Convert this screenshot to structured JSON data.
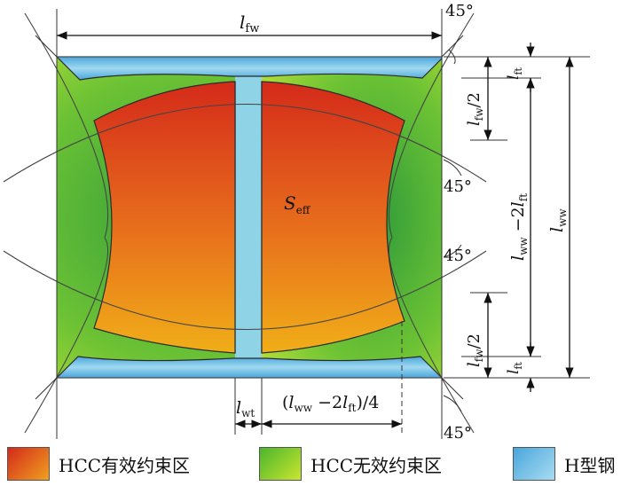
{
  "labels": {
    "top_width": "l",
    "top_width_sub": "fw",
    "half_flange_sub": "fw",
    "half_suffix": "/2",
    "flange_thk": "l",
    "flange_thk_sub": "ft",
    "web_height": "l",
    "web_height_sub": "ww",
    "web_height_minus": " −2",
    "web_height_l2": "l",
    "web_height_l2_sub": "ft",
    "total_height": "l",
    "total_height_sub": "ww",
    "web_thk": "l",
    "web_thk_sub": "wt",
    "quarter_prefix": "(",
    "quarter_l": "l",
    "quarter_l_sub": "ww",
    "quarter_mid": " −2",
    "quarter_l2": "l",
    "quarter_l2_sub": "ft",
    "quarter_suffix": ")/4",
    "seff": "S",
    "seff_sub": "eff",
    "angle": "45°"
  },
  "legend": [
    {
      "label": "HCC有效约束区",
      "color_a": "#d42a1a",
      "color_b": "#f0a020"
    },
    {
      "label": "HCC无效约束区",
      "color_a": "#4cb52c",
      "color_b": "#c8e630"
    },
    {
      "label": "H型钢",
      "color_a": "#4aa6dc",
      "color_b": "#a8dcf2"
    }
  ],
  "colors": {
    "steel": "#8fd3e6",
    "effective_top": "#d02818",
    "effective_bottom": "#f0a818",
    "ineffective_edge": "#8fd13a",
    "ineffective_center": "#3fa53c"
  }
}
